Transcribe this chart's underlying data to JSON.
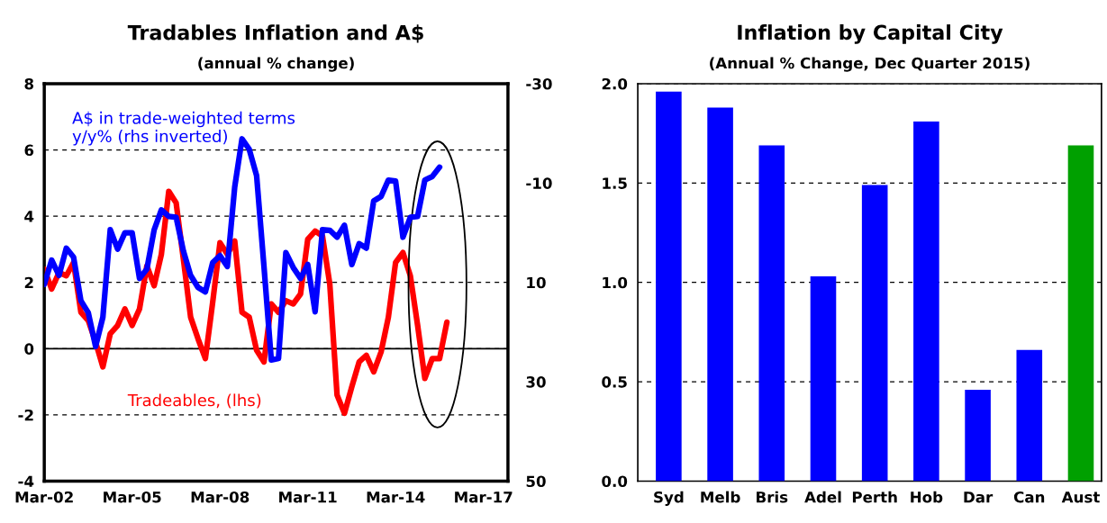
{
  "chart_data": [
    {
      "type": "line",
      "title": "Tradables Inflation and A$",
      "subtitle": "(annual % change)",
      "x": [
        "2002-03",
        "2002-06",
        "2002-09",
        "2002-12",
        "2003-03",
        "2003-06",
        "2003-09",
        "2003-12",
        "2004-03",
        "2004-06",
        "2004-09",
        "2004-12",
        "2005-03",
        "2005-06",
        "2005-09",
        "2005-12",
        "2006-03",
        "2006-06",
        "2006-09",
        "2006-12",
        "2007-03",
        "2007-06",
        "2007-09",
        "2007-12",
        "2008-03",
        "2008-06",
        "2008-09",
        "2008-12",
        "2009-03",
        "2009-06",
        "2009-09",
        "2009-12",
        "2010-03",
        "2010-06",
        "2010-09",
        "2010-12",
        "2011-03",
        "2011-06",
        "2011-09",
        "2011-12",
        "2012-03",
        "2012-06",
        "2012-09",
        "2012-12",
        "2013-03",
        "2013-06",
        "2013-09",
        "2013-12",
        "2014-03",
        "2014-06",
        "2014-09",
        "2014-12",
        "2015-03",
        "2015-06",
        "2015-09",
        "2015-12"
      ],
      "series": [
        {
          "name": "Tradeables, (lhs)",
          "color": "#ff0000",
          "values": [
            2.4,
            1.8,
            2.3,
            2.2,
            2.6,
            1.1,
            0.85,
            0.2,
            -0.55,
            0.45,
            0.7,
            1.2,
            0.7,
            1.2,
            2.5,
            1.9,
            2.85,
            4.75,
            4.4,
            2.7,
            0.95,
            0.3,
            -0.3,
            1.4,
            3.2,
            2.85,
            3.25,
            1.1,
            0.95,
            -0.05,
            -0.4,
            1.35,
            1.1,
            1.45,
            1.35,
            1.65,
            3.3,
            3.55,
            3.4,
            1.95,
            -1.4,
            -1.95,
            -1.15,
            -0.4,
            -0.2,
            -0.7,
            -0.1,
            0.95,
            2.6,
            2.9,
            2.2,
            0.7,
            -0.9,
            -0.3,
            -0.3,
            0.8
          ]
        },
        {
          "name": "A$ in trade-weighted terms\ny/y% (rhs inverted)",
          "color": "#0000ff",
          "axis": "y2",
          "values": [
            10.4,
            5.5,
            8.6,
            3.1,
            4.9,
            13.7,
            16.1,
            22.9,
            17.0,
            -0.6,
            3.3,
            0.0,
            0.0,
            9.2,
            7.3,
            -0.6,
            -4.6,
            -3.3,
            -3.1,
            3.7,
            8.6,
            11.0,
            11.9,
            6.0,
            4.6,
            6.8,
            -9.2,
            -18.9,
            -16.8,
            -11.5,
            6.8,
            25.6,
            25.3,
            4.0,
            7.0,
            9.2,
            6.4,
            15.9,
            -0.6,
            -0.5,
            0.9,
            -1.5,
            6.4,
            2.2,
            3.1,
            -6.4,
            -7.3,
            -10.6,
            -10.4,
            0.9,
            -3.1,
            -3.3,
            -10.6,
            -11.3,
            -13.2,
            null
          ]
        }
      ],
      "xlim": [
        "2002-03",
        "2018-01"
      ],
      "xticks": [
        {
          "value": "2002-03",
          "label": "Mar-02"
        },
        {
          "value": "2005-03",
          "label": "Mar-05"
        },
        {
          "value": "2008-03",
          "label": "Mar-08"
        },
        {
          "value": "2011-03",
          "label": "Mar-11"
        },
        {
          "value": "2014-03",
          "label": "Mar-14"
        },
        {
          "value": "2017-03",
          "label": "Mar-17"
        }
      ],
      "ylim": [
        -4,
        8
      ],
      "yticks": [
        -4,
        -2,
        0,
        2,
        4,
        6,
        8
      ],
      "y2lim": [
        50,
        -30
      ],
      "y2ticks": [
        50,
        30,
        10,
        -10,
        -30
      ],
      "ref_lines": [
        {
          "axis": "y",
          "value": 0,
          "color": "#000000",
          "line_style": "solid"
        }
      ],
      "grid": "y",
      "legend": false,
      "marker": "none",
      "line_style": "solid"
    },
    {
      "type": "bar",
      "title": "Inflation by Capital City",
      "subtitle": "(Annual % Change, Dec Quarter 2015)",
      "categories": [
        "Syd",
        "Melb",
        "Bris",
        "Adel",
        "Perth",
        "Hob",
        "Dar",
        "Can",
        "Aust"
      ],
      "values": [
        1.96,
        1.88,
        1.69,
        1.03,
        1.49,
        1.81,
        0.46,
        0.66,
        1.69
      ],
      "colors": [
        "#0000ff",
        "#0000ff",
        "#0000ff",
        "#0000ff",
        "#0000ff",
        "#0000ff",
        "#0000ff",
        "#0000ff",
        "#00a000"
      ],
      "ylim": [
        0,
        2
      ],
      "yticks": [
        {
          "value": 0,
          "label": "0.0"
        },
        {
          "value": 0.5,
          "label": "0.5"
        },
        {
          "value": 1,
          "label": "1.0"
        },
        {
          "value": 1.5,
          "label": "1.5"
        },
        {
          "value": 2,
          "label": "2.0"
        }
      ],
      "grid": "y",
      "legend": false
    }
  ]
}
